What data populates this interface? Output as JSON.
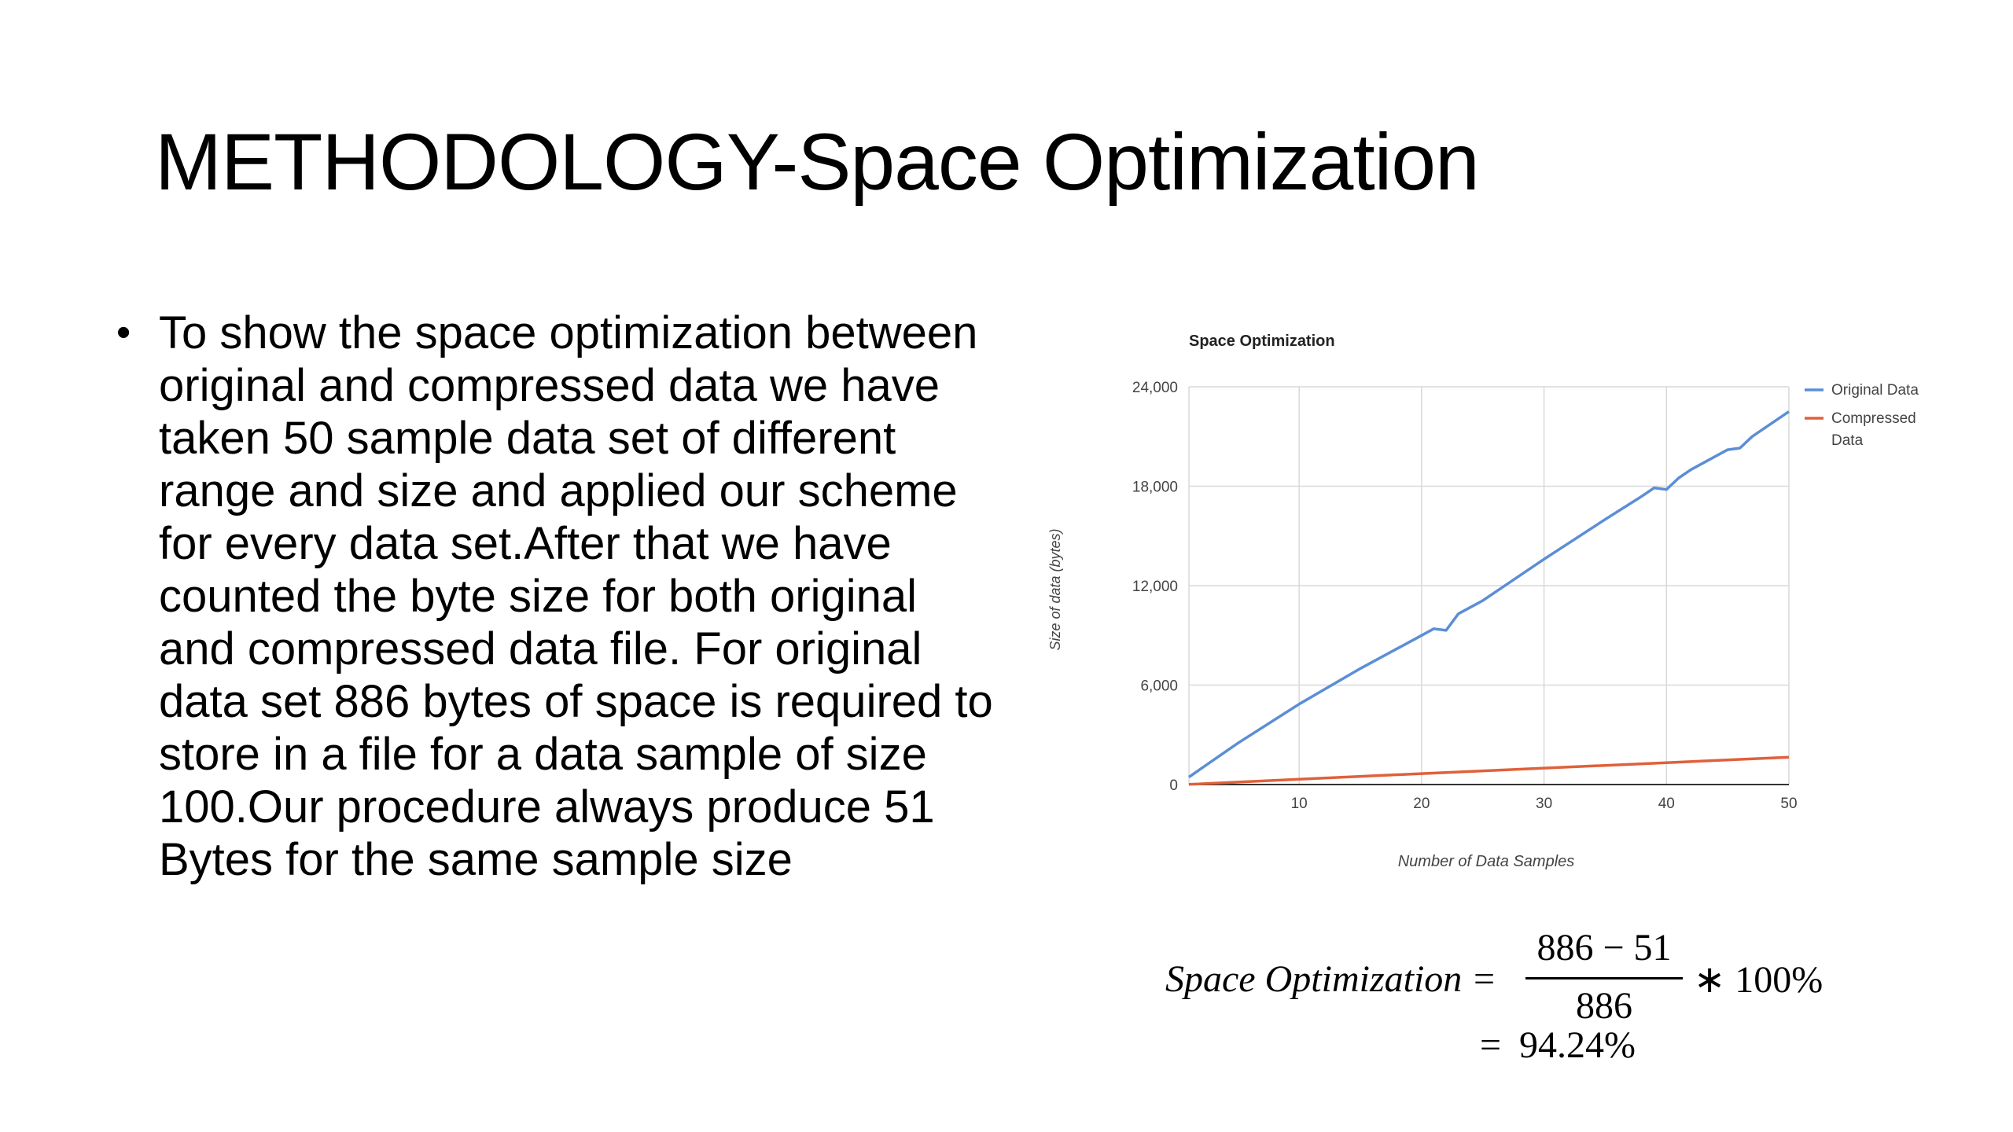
{
  "slide": {
    "title": "METHODOLOGY-Space Optimization",
    "bullet_marker": "•",
    "bullet_text": "To show the space optimization between original and compressed data we have taken 50 sample data set of different range and size and applied our scheme for every data set.After that we have counted the byte size for both original and compressed data file. For original data set 886 bytes of space is required to store in a file for a data sample of size 100.Our procedure always produce 51 Bytes for the same sample size"
  },
  "formula": {
    "lhs": "Space  Optimization",
    "equals": "=",
    "numerator": "886 − 51",
    "denominator": "886",
    "multiplier": "∗ 100%",
    "result": "94.24%"
  },
  "chart_data": {
    "type": "line",
    "title": "Space Optimization",
    "xlabel": "Number of Data Samples",
    "ylabel": "Size of data (bytes)",
    "xlim": [
      1,
      50
    ],
    "ylim": [
      0,
      24000
    ],
    "x_ticks": [
      10,
      20,
      30,
      40,
      50
    ],
    "y_ticks": [
      0,
      6000,
      12000,
      18000,
      24000
    ],
    "y_tick_labels": [
      "0",
      "6,000",
      "12,000",
      "18,000",
      "24,000"
    ],
    "grid": true,
    "legend_position": "right",
    "series": [
      {
        "name": "Original Data",
        "color": "#5b8ed6",
        "x": [
          1,
          5,
          10,
          15,
          20,
          21,
          22,
          23,
          24,
          25,
          30,
          35,
          38,
          39,
          40,
          41,
          42,
          45,
          46,
          47,
          48,
          50
        ],
        "y": [
          450,
          2500,
          4850,
          7000,
          9000,
          9400,
          9300,
          10300,
          10700,
          11100,
          13600,
          16000,
          17400,
          17900,
          17800,
          18500,
          19000,
          20200,
          20300,
          21000,
          21500,
          22500
        ]
      },
      {
        "name": "Compressed Data",
        "color": "#e0603a",
        "x": [
          1,
          10,
          20,
          30,
          40,
          50
        ],
        "y": [
          10,
          320,
          660,
          990,
          1320,
          1650
        ]
      }
    ]
  }
}
